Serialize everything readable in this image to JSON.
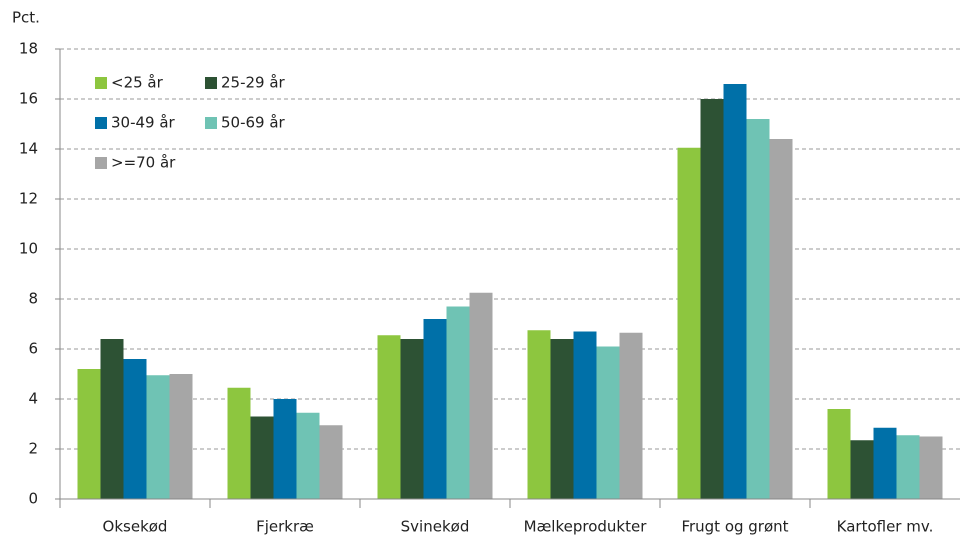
{
  "chart_data": {
    "type": "bar",
    "y_label": "Pct.",
    "categories": [
      "Oksekød",
      "Fjerkræ",
      "Svinekød",
      "Mælkeprodukter",
      "Frugt og grønt",
      "Kartofler mv."
    ],
    "series": [
      {
        "name": "<25 år",
        "color": "#8dc63f",
        "values": [
          5.2,
          4.45,
          6.55,
          6.75,
          14.05,
          3.6
        ]
      },
      {
        "name": "25-29 år",
        "color": "#2d5234",
        "values": [
          6.4,
          3.3,
          6.4,
          6.4,
          16.0,
          2.35
        ]
      },
      {
        "name": "30-49 år",
        "color": "#0070a8",
        "values": [
          5.6,
          4.0,
          7.2,
          6.7,
          16.6,
          2.85
        ]
      },
      {
        "name": "50-69 år",
        "color": "#6fc3b4",
        "values": [
          4.95,
          3.45,
          7.7,
          6.1,
          15.2,
          2.55
        ]
      },
      {
        "name": ">=70 år",
        "color": "#a6a6a6",
        "values": [
          5.0,
          2.95,
          8.25,
          6.65,
          14.4,
          2.5
        ]
      }
    ],
    "ylim": [
      0,
      18
    ],
    "yticks": [
      0,
      2,
      4,
      6,
      8,
      10,
      12,
      14,
      16,
      18
    ],
    "grid": true,
    "legend": "upper left"
  }
}
